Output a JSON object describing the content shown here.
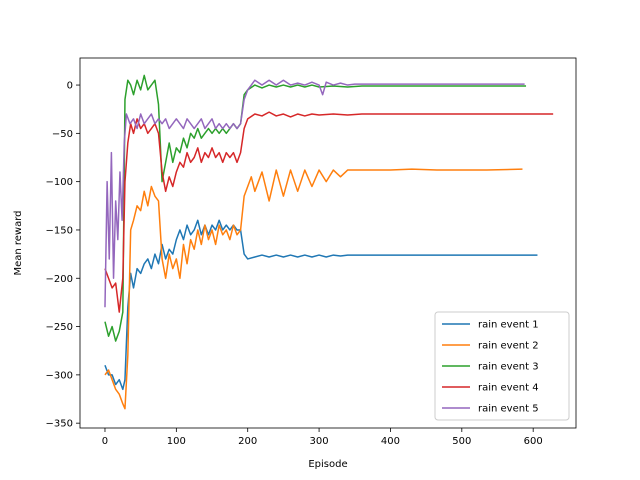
{
  "chart_data": {
    "type": "line",
    "xlabel": "Episode",
    "ylabel": "Mean reward",
    "xlim": [
      -35,
      660
    ],
    "ylim": [
      -355,
      28
    ],
    "xticks": [
      0,
      100,
      200,
      300,
      400,
      500,
      600
    ],
    "yticks": [
      0,
      -50,
      -100,
      -150,
      -200,
      -250,
      -300,
      -350
    ],
    "grid": false,
    "legend_position": "lower right",
    "series": [
      {
        "name": "rain event 1",
        "color": "#1f77b4",
        "points": [
          [
            0,
            -290
          ],
          [
            5,
            -300
          ],
          [
            10,
            -300
          ],
          [
            15,
            -310
          ],
          [
            20,
            -305
          ],
          [
            25,
            -315
          ],
          [
            28,
            -305
          ],
          [
            32,
            -230
          ],
          [
            36,
            -195
          ],
          [
            40,
            -210
          ],
          [
            45,
            -190
          ],
          [
            50,
            -195
          ],
          [
            55,
            -185
          ],
          [
            60,
            -180
          ],
          [
            65,
            -190
          ],
          [
            70,
            -175
          ],
          [
            75,
            -185
          ],
          [
            80,
            -165
          ],
          [
            85,
            -180
          ],
          [
            90,
            -170
          ],
          [
            95,
            -175
          ],
          [
            100,
            -160
          ],
          [
            105,
            -150
          ],
          [
            110,
            -160
          ],
          [
            115,
            -145
          ],
          [
            120,
            -155
          ],
          [
            125,
            -150
          ],
          [
            130,
            -140
          ],
          [
            135,
            -155
          ],
          [
            140,
            -145
          ],
          [
            145,
            -155
          ],
          [
            150,
            -145
          ],
          [
            155,
            -150
          ],
          [
            160,
            -140
          ],
          [
            165,
            -150
          ],
          [
            170,
            -145
          ],
          [
            175,
            -150
          ],
          [
            180,
            -145
          ],
          [
            185,
            -150
          ],
          [
            190,
            -150
          ],
          [
            195,
            -175
          ],
          [
            200,
            -180
          ],
          [
            210,
            -178
          ],
          [
            220,
            -176
          ],
          [
            230,
            -178
          ],
          [
            240,
            -176
          ],
          [
            250,
            -178
          ],
          [
            260,
            -176
          ],
          [
            270,
            -178
          ],
          [
            280,
            -176
          ],
          [
            290,
            -178
          ],
          [
            300,
            -176
          ],
          [
            310,
            -178
          ],
          [
            320,
            -176
          ],
          [
            330,
            -177
          ],
          [
            340,
            -176
          ],
          [
            350,
            -176
          ],
          [
            400,
            -176
          ],
          [
            450,
            -176
          ],
          [
            500,
            -176
          ],
          [
            550,
            -176
          ],
          [
            606,
            -176
          ]
        ]
      },
      {
        "name": "rain event 2",
        "color": "#ff7f0e",
        "points": [
          [
            0,
            -300
          ],
          [
            5,
            -295
          ],
          [
            10,
            -305
          ],
          [
            15,
            -315
          ],
          [
            20,
            -320
          ],
          [
            25,
            -330
          ],
          [
            28,
            -335
          ],
          [
            32,
            -280
          ],
          [
            36,
            -150
          ],
          [
            40,
            -140
          ],
          [
            45,
            -125
          ],
          [
            50,
            -130
          ],
          [
            55,
            -110
          ],
          [
            60,
            -125
          ],
          [
            65,
            -105
          ],
          [
            70,
            -115
          ],
          [
            75,
            -120
          ],
          [
            80,
            -180
          ],
          [
            85,
            -200
          ],
          [
            90,
            -175
          ],
          [
            95,
            -190
          ],
          [
            100,
            -180
          ],
          [
            105,
            -200
          ],
          [
            110,
            -165
          ],
          [
            115,
            -185
          ],
          [
            120,
            -160
          ],
          [
            125,
            -170
          ],
          [
            130,
            -150
          ],
          [
            135,
            -165
          ],
          [
            140,
            -145
          ],
          [
            145,
            -160
          ],
          [
            150,
            -150
          ],
          [
            155,
            -165
          ],
          [
            160,
            -145
          ],
          [
            165,
            -155
          ],
          [
            170,
            -150
          ],
          [
            175,
            -160
          ],
          [
            180,
            -145
          ],
          [
            185,
            -155
          ],
          [
            190,
            -150
          ],
          [
            195,
            -115
          ],
          [
            200,
            -105
          ],
          [
            205,
            -95
          ],
          [
            210,
            -110
          ],
          [
            220,
            -90
          ],
          [
            230,
            -120
          ],
          [
            240,
            -88
          ],
          [
            250,
            -115
          ],
          [
            260,
            -88
          ],
          [
            270,
            -110
          ],
          [
            280,
            -88
          ],
          [
            290,
            -105
          ],
          [
            300,
            -88
          ],
          [
            310,
            -100
          ],
          [
            320,
            -88
          ],
          [
            330,
            -95
          ],
          [
            340,
            -88
          ],
          [
            350,
            -88
          ],
          [
            400,
            -88
          ],
          [
            430,
            -87
          ],
          [
            465,
            -88
          ],
          [
            500,
            -88
          ],
          [
            535,
            -88
          ],
          [
            585,
            -87
          ]
        ]
      },
      {
        "name": "rain event 3",
        "color": "#2ca02c",
        "points": [
          [
            0,
            -245
          ],
          [
            5,
            -260
          ],
          [
            10,
            -250
          ],
          [
            15,
            -265
          ],
          [
            20,
            -255
          ],
          [
            25,
            -235
          ],
          [
            28,
            -15
          ],
          [
            32,
            5
          ],
          [
            36,
            0
          ],
          [
            40,
            -10
          ],
          [
            45,
            5
          ],
          [
            50,
            -5
          ],
          [
            55,
            10
          ],
          [
            60,
            -5
          ],
          [
            65,
            0
          ],
          [
            70,
            5
          ],
          [
            75,
            -20
          ],
          [
            80,
            -100
          ],
          [
            85,
            -80
          ],
          [
            90,
            -60
          ],
          [
            95,
            -80
          ],
          [
            100,
            -65
          ],
          [
            105,
            -70
          ],
          [
            110,
            -55
          ],
          [
            115,
            -65
          ],
          [
            120,
            -50
          ],
          [
            125,
            -55
          ],
          [
            130,
            -45
          ],
          [
            135,
            -55
          ],
          [
            140,
            -50
          ],
          [
            145,
            -45
          ],
          [
            150,
            -50
          ],
          [
            155,
            -45
          ],
          [
            160,
            -50
          ],
          [
            165,
            -45
          ],
          [
            170,
            -50
          ],
          [
            175,
            -45
          ],
          [
            180,
            -40
          ],
          [
            185,
            -45
          ],
          [
            190,
            -40
          ],
          [
            195,
            -10
          ],
          [
            200,
            -5
          ],
          [
            210,
            0
          ],
          [
            220,
            -3
          ],
          [
            230,
            0
          ],
          [
            240,
            -2
          ],
          [
            250,
            0
          ],
          [
            260,
            -2
          ],
          [
            270,
            0
          ],
          [
            280,
            -2
          ],
          [
            290,
            0
          ],
          [
            300,
            -2
          ],
          [
            320,
            -1
          ],
          [
            340,
            -2
          ],
          [
            360,
            -1
          ],
          [
            400,
            -1
          ],
          [
            450,
            -1
          ],
          [
            500,
            -1
          ],
          [
            550,
            -1
          ],
          [
            590,
            -1
          ]
        ]
      },
      {
        "name": "rain event 4",
        "color": "#d62728",
        "points": [
          [
            0,
            -190
          ],
          [
            5,
            -200
          ],
          [
            10,
            -210
          ],
          [
            15,
            -205
          ],
          [
            20,
            -235
          ],
          [
            25,
            -200
          ],
          [
            28,
            -100
          ],
          [
            32,
            -60
          ],
          [
            36,
            -40
          ],
          [
            40,
            -50
          ],
          [
            45,
            -35
          ],
          [
            50,
            -45
          ],
          [
            55,
            -40
          ],
          [
            60,
            -50
          ],
          [
            65,
            -45
          ],
          [
            70,
            -40
          ],
          [
            75,
            -50
          ],
          [
            80,
            -90
          ],
          [
            85,
            -110
          ],
          [
            90,
            -95
          ],
          [
            95,
            -105
          ],
          [
            100,
            -90
          ],
          [
            105,
            -80
          ],
          [
            110,
            -85
          ],
          [
            115,
            -70
          ],
          [
            120,
            -80
          ],
          [
            125,
            -75
          ],
          [
            130,
            -65
          ],
          [
            135,
            -80
          ],
          [
            140,
            -70
          ],
          [
            145,
            -75
          ],
          [
            150,
            -65
          ],
          [
            155,
            -75
          ],
          [
            160,
            -70
          ],
          [
            165,
            -80
          ],
          [
            170,
            -70
          ],
          [
            175,
            -75
          ],
          [
            180,
            -70
          ],
          [
            185,
            -80
          ],
          [
            190,
            -70
          ],
          [
            195,
            -45
          ],
          [
            200,
            -35
          ],
          [
            210,
            -30
          ],
          [
            220,
            -32
          ],
          [
            230,
            -28
          ],
          [
            240,
            -32
          ],
          [
            250,
            -30
          ],
          [
            260,
            -33
          ],
          [
            270,
            -30
          ],
          [
            280,
            -32
          ],
          [
            290,
            -30
          ],
          [
            300,
            -31
          ],
          [
            320,
            -30
          ],
          [
            340,
            -31
          ],
          [
            360,
            -30
          ],
          [
            400,
            -30
          ],
          [
            450,
            -30
          ],
          [
            500,
            -30
          ],
          [
            550,
            -30
          ],
          [
            628,
            -30
          ]
        ]
      },
      {
        "name": "rain event 5",
        "color": "#9467bd",
        "points": [
          [
            0,
            -230
          ],
          [
            3,
            -100
          ],
          [
            6,
            -180
          ],
          [
            9,
            -70
          ],
          [
            12,
            -200
          ],
          [
            15,
            -120
          ],
          [
            18,
            -160
          ],
          [
            21,
            -90
          ],
          [
            24,
            -140
          ],
          [
            27,
            -60
          ],
          [
            30,
            -30
          ],
          [
            35,
            -40
          ],
          [
            40,
            -35
          ],
          [
            45,
            -45
          ],
          [
            50,
            -30
          ],
          [
            55,
            -40
          ],
          [
            60,
            -35
          ],
          [
            65,
            -30
          ],
          [
            70,
            -40
          ],
          [
            75,
            -35
          ],
          [
            80,
            -40
          ],
          [
            85,
            -35
          ],
          [
            90,
            -45
          ],
          [
            95,
            -40
          ],
          [
            100,
            -35
          ],
          [
            105,
            -40
          ],
          [
            110,
            -45
          ],
          [
            115,
            -35
          ],
          [
            120,
            -40
          ],
          [
            125,
            -45
          ],
          [
            130,
            -40
          ],
          [
            135,
            -35
          ],
          [
            140,
            -45
          ],
          [
            145,
            -40
          ],
          [
            150,
            -35
          ],
          [
            155,
            -45
          ],
          [
            160,
            -40
          ],
          [
            165,
            -45
          ],
          [
            170,
            -40
          ],
          [
            175,
            -45
          ],
          [
            180,
            -40
          ],
          [
            185,
            -45
          ],
          [
            190,
            -40
          ],
          [
            195,
            -15
          ],
          [
            200,
            -5
          ],
          [
            205,
            0
          ],
          [
            210,
            5
          ],
          [
            220,
            0
          ],
          [
            230,
            5
          ],
          [
            240,
            0
          ],
          [
            250,
            5
          ],
          [
            260,
            0
          ],
          [
            270,
            2
          ],
          [
            280,
            0
          ],
          [
            290,
            3
          ],
          [
            300,
            0
          ],
          [
            305,
            -10
          ],
          [
            310,
            3
          ],
          [
            320,
            0
          ],
          [
            330,
            2
          ],
          [
            340,
            0
          ],
          [
            350,
            1
          ],
          [
            400,
            1
          ],
          [
            450,
            1
          ],
          [
            500,
            1
          ],
          [
            550,
            1
          ],
          [
            588,
            1
          ]
        ]
      }
    ]
  }
}
